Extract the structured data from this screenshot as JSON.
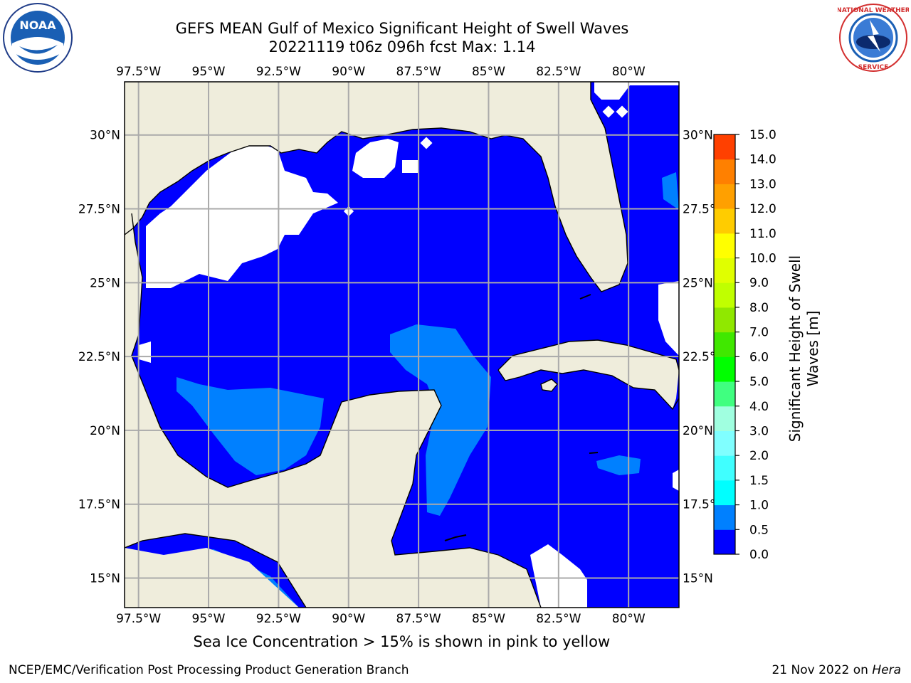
{
  "title": {
    "line1": "GEFS MEAN Gulf of Mexico Significant Height of Swell Waves",
    "line2": "20221119 t06z 096h fcst   Max: 1.14"
  },
  "logos": {
    "left_name": "NOAA",
    "right_name": "NATIONAL WEATHER SERVICE"
  },
  "map": {
    "lon_labels": [
      "97.5°W",
      "95°W",
      "92.5°W",
      "90°W",
      "87.5°W",
      "85°W",
      "82.5°W",
      "80°W"
    ],
    "lat_labels": [
      "30°N",
      "27.5°N",
      "25°N",
      "22.5°N",
      "20°N",
      "17.5°N",
      "15°N"
    ],
    "lon_values": [
      -97.5,
      -95,
      -92.5,
      -90,
      -87.5,
      -85,
      -82.5,
      -80
    ],
    "lat_values": [
      30,
      27.5,
      25,
      22.5,
      20,
      17.5,
      15
    ],
    "extent": {
      "lon_min": -98,
      "lon_max": -78.2,
      "lat_min": 14,
      "lat_max": 31.8
    },
    "colors": {
      "land": "#efeddc",
      "ocean_0": "#0000ff",
      "ocean_05": "#0080ff",
      "ocean_1": "#00ffff",
      "grid": "#aaaaaa"
    }
  },
  "colorbar": {
    "label_line1": "Significant Height of Swell",
    "label_line2": "Waves [m]",
    "ticks": [
      "0.0",
      "0.5",
      "1.0",
      "1.5",
      "2.0",
      "3.0",
      "4.0",
      "5.0",
      "6.0",
      "7.0",
      "8.0",
      "9.0",
      "10.0",
      "11.0",
      "12.0",
      "13.0",
      "14.0",
      "15.0"
    ],
    "colors": [
      "#0000ff",
      "#0080ff",
      "#00ffff",
      "#40ffff",
      "#80ffff",
      "#a0ffe0",
      "#40ff80",
      "#00ff00",
      "#40e800",
      "#90e800",
      "#c0ff00",
      "#e0ff00",
      "#ffff00",
      "#ffcc00",
      "#ffa000",
      "#ff8000",
      "#ff4000",
      "#ff0000"
    ]
  },
  "caption": "Sea Ice Concentration > 15% is shown in pink to yellow",
  "footer": {
    "left": "NCEP/EMC/Verification Post Processing Product Generation Branch",
    "right_prefix": "21 Nov 2022 on ",
    "right_machine": "Hera"
  }
}
